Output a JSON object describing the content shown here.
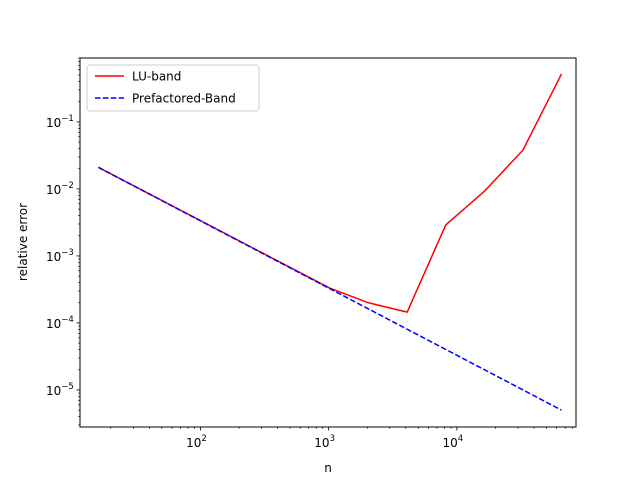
{
  "chart_data": {
    "type": "line",
    "title": "",
    "xlabel": "n",
    "ylabel": "relative error",
    "xscale": "log",
    "yscale": "log",
    "xlim": [
      11.5,
      85000
    ],
    "ylim": [
      2.8e-06,
      0.9
    ],
    "grid": false,
    "legend_placement": "top-left",
    "x_ticks": [
      {
        "value": 100,
        "base": "10",
        "exp": "2"
      },
      {
        "value": 1000,
        "base": "10",
        "exp": "3"
      },
      {
        "value": 10000,
        "base": "10",
        "exp": "4"
      }
    ],
    "y_ticks": [
      {
        "value": 1e-05,
        "base": "10",
        "exp": "−5"
      },
      {
        "value": 0.0001,
        "base": "10",
        "exp": "−4"
      },
      {
        "value": 0.001,
        "base": "10",
        "exp": "−3"
      },
      {
        "value": 0.01,
        "base": "10",
        "exp": "−2"
      },
      {
        "value": 0.1,
        "base": "10",
        "exp": "−1"
      }
    ],
    "series": [
      {
        "name": "LU-band",
        "color": "#ff0000",
        "dash": "solid",
        "x": [
          16,
          1024,
          2048,
          4096,
          8192,
          16384,
          32768,
          65536
        ],
        "y": [
          0.021,
          0.00033,
          0.0002,
          0.000145,
          0.0029,
          0.0092,
          0.038,
          0.52
        ]
      },
      {
        "name": "Prefactored-Band",
        "color": "#0000ff",
        "dash": "dashed",
        "x": [
          16,
          65536
        ],
        "y": [
          0.021,
          5e-06
        ]
      }
    ]
  }
}
